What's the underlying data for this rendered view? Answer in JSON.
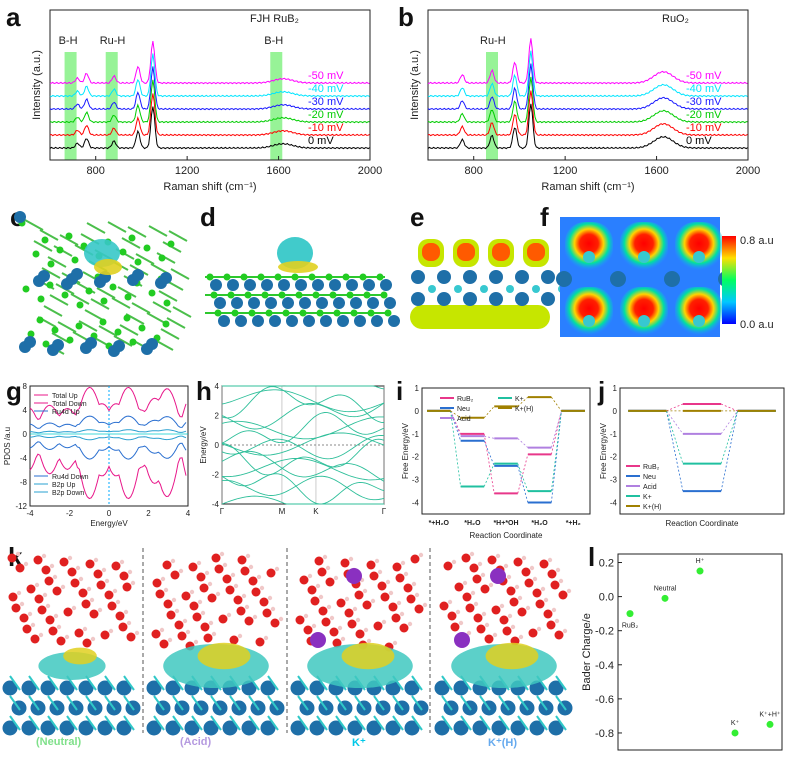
{
  "panels": {
    "a": "a",
    "b": "b",
    "c": "c",
    "d": "d",
    "e": "e",
    "f": "f",
    "g": "g",
    "h": "h",
    "i": "i",
    "j": "j",
    "k": "k",
    "l": "l"
  },
  "colors": {
    "c1": "#ff00ff",
    "c2": "#00e5ff",
    "c3": "#1a1aff",
    "c4": "#00cc00",
    "c5": "#ff0000",
    "c6": "#000000",
    "band": "#7df07d"
  },
  "chart_data": [
    {
      "id": "a",
      "type": "line",
      "title": "FJH RuB₂",
      "xlabel": "Raman shift (cm⁻¹)",
      "ylabel": "Intensity (a.u.)",
      "xlim": [
        600,
        2000
      ],
      "xticks": [
        "800",
        "1200",
        "1600",
        "2000"
      ],
      "series": [
        {
          "name": "-50 mV",
          "offset": 5
        },
        {
          "name": "-40 mV",
          "offset": 4
        },
        {
          "name": "-30 mV",
          "offset": 3
        },
        {
          "name": "-20 mV",
          "offset": 2
        },
        {
          "name": "-10 mV",
          "offset": 1
        },
        {
          "name": "0 mV",
          "offset": 0
        }
      ],
      "peaks": [
        [
          720,
          0.35
        ],
        [
          760,
          0.7
        ],
        [
          880,
          0.5
        ],
        [
          985,
          1.2
        ],
        [
          1050,
          3.0
        ],
        [
          1620,
          0.3
        ]
      ],
      "bands": [
        {
          "label": "B-H",
          "x": 690
        },
        {
          "label": "Ru-H",
          "x": 870
        },
        {
          "label": "B-H",
          "x": 1590
        }
      ]
    },
    {
      "id": "b",
      "type": "line",
      "title": "RuO₂",
      "xlabel": "Raman shift (cm⁻¹)",
      "ylabel": "Intensity (a.u.)",
      "xlim": [
        600,
        2000
      ],
      "xticks": [
        "800",
        "1200",
        "1600",
        "2000"
      ],
      "series": [
        {
          "name": "-50 mV",
          "offset": 5
        },
        {
          "name": "-40 mV",
          "offset": 4
        },
        {
          "name": "-30 mV",
          "offset": 3
        },
        {
          "name": "-20 mV",
          "offset": 2
        },
        {
          "name": "-10 mV",
          "offset": 1
        },
        {
          "name": "0 mV",
          "offset": 0
        }
      ],
      "peaks": [
        [
          750,
          0.6
        ],
        [
          880,
          0.9
        ],
        [
          980,
          1.5
        ],
        [
          1050,
          3.2
        ],
        [
          1630,
          0.8
        ]
      ],
      "bands": [
        {
          "label": "Ru-H",
          "x": 880
        }
      ]
    },
    {
      "id": "g",
      "type": "line",
      "xlabel": "Energy/eV",
      "ylabel": "PDOS /a.u",
      "xlim": [
        -4,
        4
      ],
      "ylim": [
        -12,
        8
      ],
      "xticks": [
        "-4",
        "-2",
        "0",
        "2",
        "4"
      ],
      "yticks": [
        "8",
        "4",
        "0",
        "-4",
        "-8",
        "-12"
      ],
      "legend_up": [
        "Total Up",
        "Total Down",
        "Ru4d Up"
      ],
      "legend_down": [
        "Ru4d Down",
        "B2p Up",
        "B2p Down"
      ]
    },
    {
      "id": "h",
      "type": "line",
      "ylabel": "Energy/eV",
      "ylim": [
        -4,
        4
      ],
      "yticks": [
        "4",
        "2",
        "0",
        "-2",
        "-4"
      ],
      "kpoints": [
        "Γ",
        "M",
        "K",
        "Γ"
      ]
    },
    {
      "id": "i",
      "type": "line",
      "xlabel": "Reaction Coordinate",
      "ylabel": "Free Energy/eV",
      "yticks": [
        "1",
        "0",
        "-1",
        "-2",
        "-3",
        "-4"
      ],
      "states": [
        "*+H₂O",
        "*H₂O",
        "*H+*OH",
        "*H₂O",
        "*+H₂"
      ],
      "legend": [
        "RuB₂",
        "Neu",
        "Acid",
        "K+",
        "K+(H)"
      ],
      "series": [
        {
          "name": "RuB₂",
          "values": [
            0,
            -1.0,
            -3.6,
            -1.9,
            0
          ]
        },
        {
          "name": "Neu",
          "values": [
            0,
            -1.3,
            -2.4,
            -4.0,
            0
          ]
        },
        {
          "name": "Acid",
          "values": [
            0,
            -1.1,
            -1.2,
            -1.6,
            0
          ]
        },
        {
          "name": "K+",
          "values": [
            0,
            -3.3,
            -2.3,
            -3.5,
            0
          ]
        },
        {
          "name": "K+(H)",
          "values": [
            0,
            -0.3,
            0.2,
            0.6,
            0
          ]
        }
      ]
    },
    {
      "id": "j",
      "type": "line",
      "xlabel": "Reaction Coordinate",
      "ylabel": "Free Energy/eV",
      "yticks": [
        "1",
        "0",
        "-1",
        "-2",
        "-3",
        "-4"
      ],
      "legend": [
        "RuB₂",
        "Neu",
        "Acid",
        "K+",
        "K+(H)"
      ],
      "series": [
        {
          "name": "RuB₂",
          "values": [
            0,
            0.3,
            0
          ]
        },
        {
          "name": "Neu",
          "values": [
            0,
            -3.5,
            0
          ]
        },
        {
          "name": "Acid",
          "values": [
            0,
            -1.0,
            0
          ]
        },
        {
          "name": "K+",
          "values": [
            0,
            -2.3,
            0
          ]
        },
        {
          "name": "K+(H)",
          "values": [
            0,
            0,
            0
          ]
        }
      ]
    },
    {
      "id": "l",
      "type": "scatter",
      "ylabel": "Bader Charge/e",
      "ylim": [
        -0.9,
        0.25
      ],
      "yticks": [
        "0.2",
        "0.0",
        "-0.2",
        "-0.4",
        "-0.6",
        "-0.8"
      ],
      "points": [
        {
          "label": "RuB₂",
          "y": -0.1
        },
        {
          "label": "Neutral",
          "y": -0.01
        },
        {
          "label": "H⁺",
          "y": 0.15
        },
        {
          "label": "K⁺",
          "y": -0.8
        },
        {
          "label": "K⁺+H⁺",
          "y": -0.75
        }
      ]
    }
  ],
  "colorbar": {
    "max": "0.8 a.u",
    "min": "0.0 a.u"
  },
  "k_captions": [
    "(Neutral)",
    "(Acid)",
    "K⁺",
    "K⁺(H)"
  ]
}
